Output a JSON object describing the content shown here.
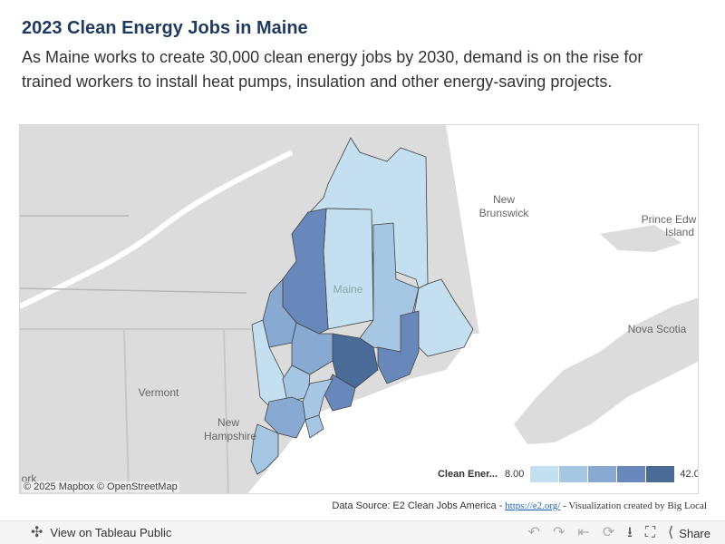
{
  "header": {
    "title": "2023 Clean Energy Jobs in Maine",
    "subtitle": "As Maine works to create 30,000 clean energy jobs by 2030, demand is on the rise for trained workers to install heat pumps, insulation and other energy-saving projects."
  },
  "map": {
    "place_labels": {
      "new_brunswick_line1": "New",
      "new_brunswick_line2": "Brunswick",
      "pei_line1": "Prince Edw",
      "pei_line2": "Island",
      "maine": "Maine",
      "nova_scotia": "Nova Scotia",
      "vermont": "Vermont",
      "new_hampshire_line1": "New",
      "new_hampshire_line2": "Hampshire",
      "york_fragment": "ork"
    },
    "attribution": "© 2025 Mapbox  © OpenStreetMap",
    "colors": {
      "land": "#dcdcdc",
      "water": "#ffffff",
      "c1": "#c4dff0",
      "c2": "#a6c7e3",
      "c3": "#88aad2",
      "c4": "#6888bb",
      "c5": "#4a6b98"
    }
  },
  "legend": {
    "title": "Clean Ener...",
    "min": "8.00",
    "max": "42.00",
    "steps": [
      "#c4dff0",
      "#a6c7e3",
      "#88aad2",
      "#6888bb",
      "#4a6b98"
    ]
  },
  "footer": {
    "source_label": "Data Source:",
    "source_text": "E2 Clean Jobs America -",
    "source_link": "https://e2.org/",
    "credit": "- Visualization created by Big Local"
  },
  "toolbar": {
    "view_label": "View on Tableau Public",
    "share_label": "Share"
  }
}
